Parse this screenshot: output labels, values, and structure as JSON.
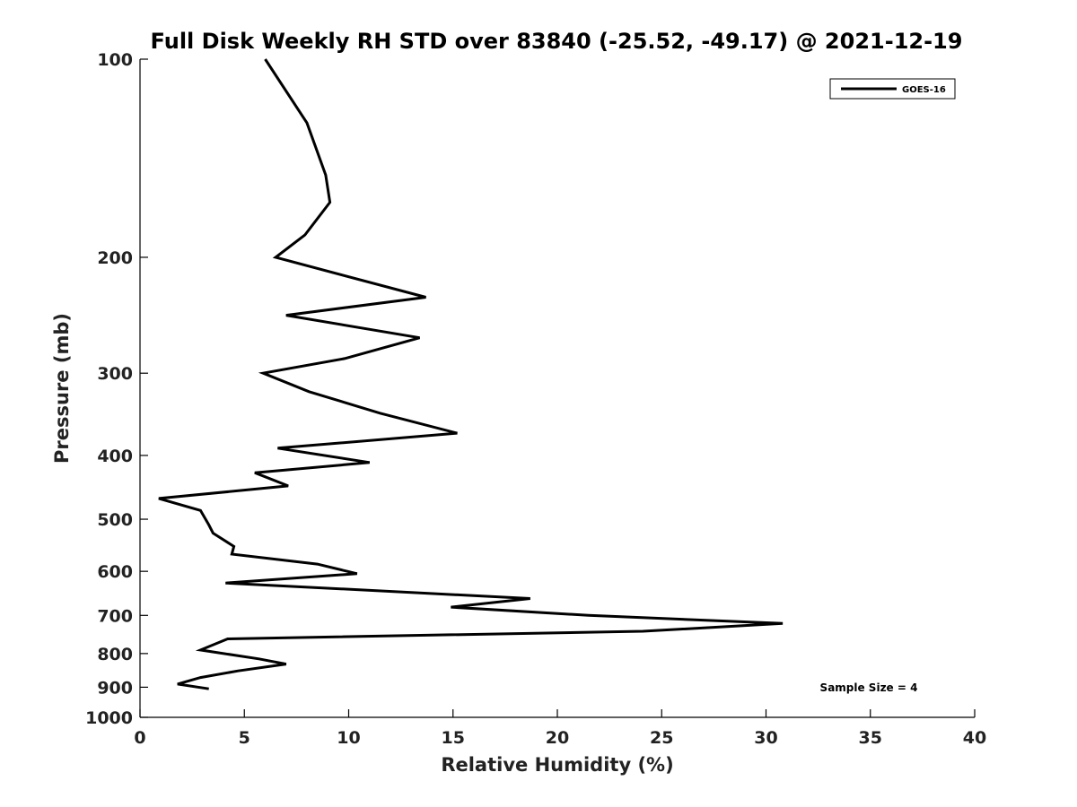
{
  "chart_data": {
    "type": "line",
    "title": "Full Disk Weekly RH STD over 83840 (-25.52, -49.17) @ 2021-12-19",
    "xlabel": "Relative Humidity (%)",
    "ylabel": "Pressure (mb)",
    "xlim": [
      0,
      40
    ],
    "ylim": [
      100,
      1000
    ],
    "y_scale": "log",
    "y_reversed": true,
    "xticks": [
      "0",
      "5",
      "10",
      "15",
      "20",
      "25",
      "30",
      "35",
      "40"
    ],
    "yticks": [
      "100",
      "200",
      "300",
      "400",
      "500",
      "600",
      "700",
      "800",
      "900",
      "1000"
    ],
    "legend": {
      "position": "top-right",
      "entries": [
        "GOES-16"
      ]
    },
    "grid": false,
    "annotation": "Sample Size = 4",
    "series": [
      {
        "name": "GOES-16",
        "color": "#000000",
        "x": [
          6.0,
          8.0,
          8.9,
          9.1,
          7.9,
          6.5,
          13.7,
          7.0,
          13.4,
          9.8,
          5.9,
          8.1,
          11.5,
          15.2,
          6.6,
          11.0,
          5.5,
          7.1,
          0.9,
          2.9,
          3.3,
          3.5,
          4.5,
          4.4,
          8.5,
          10.4,
          4.1,
          18.7,
          14.9,
          21.5,
          30.8,
          24.1,
          4.2,
          2.9,
          5.7,
          7.0,
          4.7,
          2.9,
          1.8,
          3.3
        ],
        "y": [
          100,
          125,
          150,
          165,
          185,
          200,
          230,
          245,
          265,
          285,
          300,
          320,
          345,
          370,
          390,
          410,
          425,
          445,
          465,
          485,
          510,
          525,
          550,
          565,
          585,
          605,
          625,
          660,
          680,
          700,
          720,
          740,
          760,
          790,
          815,
          830,
          850,
          870,
          890,
          905
        ]
      }
    ]
  }
}
